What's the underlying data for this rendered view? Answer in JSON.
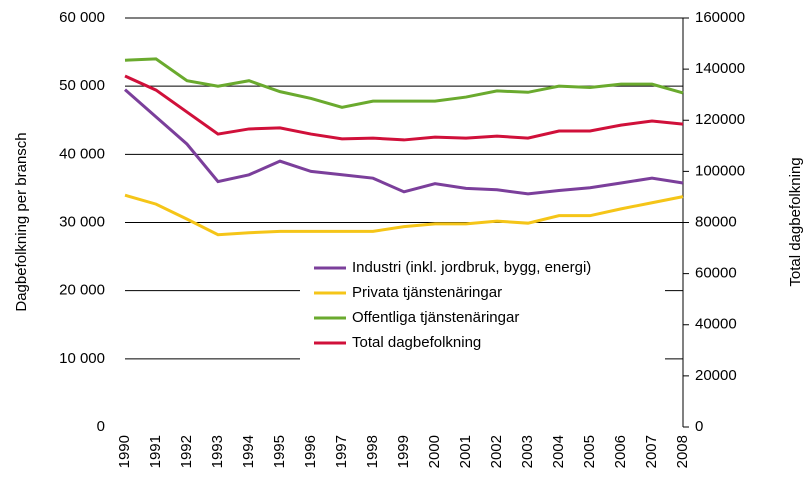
{
  "chart_data": {
    "type": "line",
    "categories": [
      "1990",
      "1991",
      "1992",
      "1993",
      "1994",
      "1995",
      "1996",
      "1997",
      "1998",
      "1999",
      "2000",
      "2001",
      "2002",
      "2003",
      "2004",
      "2005",
      "2006",
      "2007",
      "2008"
    ],
    "ylabel": "Dagbefolkning per bransch",
    "y2label": "Total dagbefolkning",
    "ylim": [
      0,
      60000
    ],
    "yticks": [
      0,
      {
        "value": 10000,
        "label": "10 000"
      },
      {
        "value": 20000,
        "label": "20 000"
      },
      {
        "value": 30000,
        "label": "30 000"
      },
      {
        "value": 40000,
        "label": "40 000"
      },
      {
        "value": 50000,
        "label": "50 000"
      },
      {
        "value": 60000,
        "label": "60 000"
      }
    ],
    "y2lim": [
      0,
      160000
    ],
    "y2ticks": [
      0,
      20000,
      40000,
      60000,
      80000,
      100000,
      120000,
      140000,
      160000
    ],
    "grid": true,
    "legend": "lower-center",
    "series": [
      {
        "name": "Industri (inkl. jordbruk, bygg, energi)",
        "color": "#7b3f9b",
        "values": [
          49500,
          45500,
          41500,
          36000,
          37000,
          39000,
          37500,
          37000,
          36500,
          34500,
          35700,
          35000,
          34800,
          34200,
          34700,
          35100,
          35800,
          36500,
          35800
        ]
      },
      {
        "name": "Privata tjänstenäringar",
        "color": "#f5c518",
        "values": [
          34000,
          32700,
          30500,
          28200,
          28500,
          28700,
          28700,
          28700,
          28700,
          29400,
          29800,
          29800,
          30200,
          29900,
          31000,
          31000,
          32000,
          32900,
          33800
        ]
      },
      {
        "name": "Offentliga tjänstenäringar",
        "color": "#6aaa2e",
        "values": [
          53800,
          54000,
          50800,
          50000,
          50800,
          49200,
          48200,
          46900,
          47800,
          47800,
          47800,
          48400,
          49300,
          49100,
          50000,
          49800,
          50300,
          50300,
          49000
        ]
      },
      {
        "name": "Total dagbefolkning",
        "color": "#d0103a",
        "axis": "y2",
        "values": [
          137300,
          131800,
          123200,
          114600,
          116600,
          117000,
          114600,
          112700,
          113000,
          112300,
          113400,
          113000,
          113800,
          113000,
          115800,
          115800,
          118100,
          119700,
          118500
        ]
      }
    ]
  }
}
